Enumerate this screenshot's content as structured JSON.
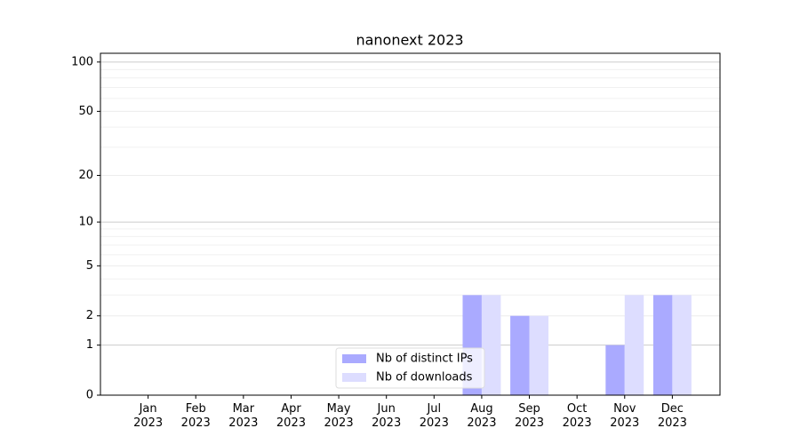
{
  "chart_data": {
    "type": "bar",
    "title": "nanonext 2023",
    "categories": [
      "Jan\n2023",
      "Feb\n2023",
      "Mar\n2023",
      "Apr\n2023",
      "May\n2023",
      "Jun\n2023",
      "Jul\n2023",
      "Aug\n2023",
      "Sep\n2023",
      "Oct\n2023",
      "Nov\n2023",
      "Dec\n2023"
    ],
    "series": [
      {
        "name": "Nb of distinct IPs",
        "color": "#aaaaff",
        "values": [
          0,
          0,
          0,
          0,
          0,
          0,
          0,
          3,
          2,
          0,
          1,
          3
        ]
      },
      {
        "name": "Nb of downloads",
        "color": "#ddddff",
        "values": [
          0,
          0,
          0,
          0,
          0,
          0,
          0,
          3,
          2,
          0,
          3,
          3
        ]
      }
    ],
    "yscale": "log1p",
    "ylim": [
      0,
      113
    ],
    "yticks": [
      0,
      1,
      2,
      5,
      10,
      20,
      50,
      100
    ],
    "minor_yticks": [
      3,
      4,
      6,
      7,
      8,
      9,
      30,
      40,
      60,
      70,
      80,
      90
    ],
    "grid": true,
    "legend": "lower center"
  }
}
